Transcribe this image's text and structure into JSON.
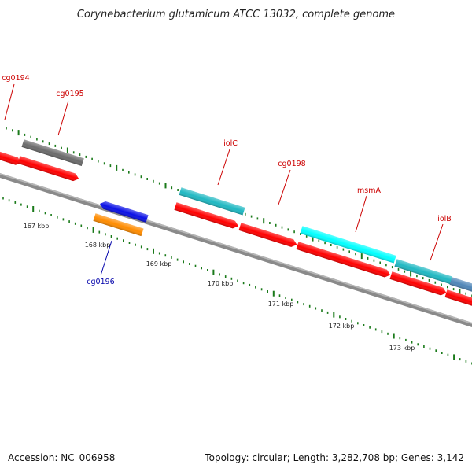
{
  "title": "Corynebacterium glutamicum ATCC 13032, complete genome",
  "footer": {
    "accession": "Accession: NC_006958",
    "summary": "Topology: circular; Length: 3,282,708 bp; Genes: 3,142"
  },
  "colors": {
    "red_cds": "#ff0000",
    "teal_cds": "#1fb8c2",
    "cyan_cds": "#00ffff",
    "grey_cds": "#6b6b6b",
    "blue_cds": "#0a10e6",
    "orange_cds": "#ff8c00",
    "steel_cds": "#4f86b8",
    "backbone": "#8a8a8a",
    "tick": "#1a7a1a",
    "forward_label": "#cc0000",
    "reverse_label": "#0000aa"
  },
  "gene_labels": [
    {
      "id": "cg0194",
      "text": "cg0194",
      "strand": "forward"
    },
    {
      "id": "cg0195",
      "text": "cg0195",
      "strand": "forward"
    },
    {
      "id": "iolC",
      "text": "iolC",
      "strand": "forward"
    },
    {
      "id": "cg0198",
      "text": "cg0198",
      "strand": "forward"
    },
    {
      "id": "msmA",
      "text": "msmA",
      "strand": "forward"
    },
    {
      "id": "iolB",
      "text": "iolB",
      "strand": "forward"
    },
    {
      "id": "cg0196",
      "text": "cg0196",
      "strand": "reverse"
    }
  ],
  "kbp_ticks": [
    {
      "id": "167",
      "text": "167 kbp"
    },
    {
      "id": "168",
      "text": "168 kbp"
    },
    {
      "id": "169",
      "text": "169 kbp"
    },
    {
      "id": "170",
      "text": "170 kbp"
    },
    {
      "id": "171",
      "text": "171 kbp"
    },
    {
      "id": "172",
      "text": "172 kbp"
    },
    {
      "id": "173",
      "text": "173 kbp"
    }
  ]
}
